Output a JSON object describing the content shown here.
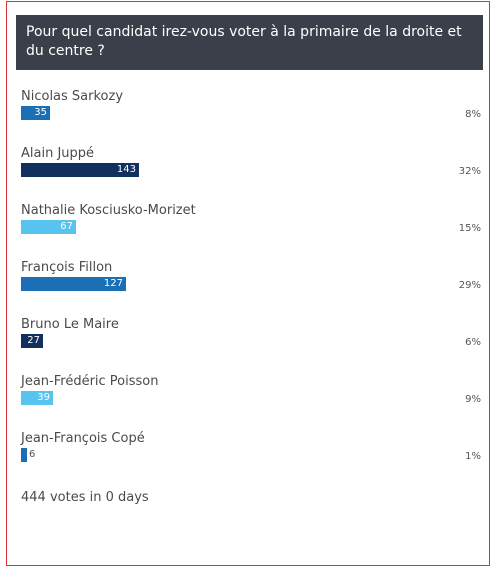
{
  "poll": {
    "question": "Pour quel candidat irez-vous voter à la primaire de la droite et du centre ?",
    "total": "444 votes in 0 days",
    "options": [
      {
        "name": "Nicolas Sarkozy",
        "votes": 35,
        "percent": "8%",
        "color": "#1a6fb5"
      },
      {
        "name": "Alain Juppé",
        "votes": 143,
        "percent": "32%",
        "color": "#12305e"
      },
      {
        "name": "Nathalie Kosciusko-Morizet",
        "votes": 67,
        "percent": "15%",
        "color": "#57c4f0"
      },
      {
        "name": "François Fillon",
        "votes": 127,
        "percent": "29%",
        "color": "#1a6fb5"
      },
      {
        "name": "Bruno Le Maire",
        "votes": 27,
        "percent": "6%",
        "color": "#12305e"
      },
      {
        "name": "Jean-Frédéric Poisson",
        "votes": 39,
        "percent": "9%",
        "color": "#57c4f0"
      },
      {
        "name": "Jean-François Copé",
        "votes": 6,
        "percent": "1%",
        "color": "#1a6fb5"
      }
    ]
  }
}
